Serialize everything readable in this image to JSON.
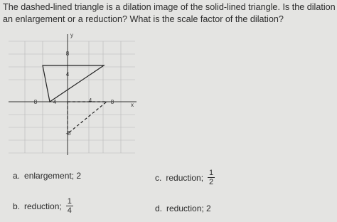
{
  "question": "The dashed-lined triangle is a dilation image of the solid-lined triangle. Is the dilation an enlargement or a reduction? What is the scale factor of the dilation?",
  "graph": {
    "y_axis_label": "y",
    "x_axis_label": "x",
    "y_tick_labels": [
      "8",
      "4",
      "-8"
    ],
    "x_tick_labels": [
      "8",
      "4",
      "4",
      "8"
    ]
  },
  "options": [
    {
      "letter": "a.",
      "text": "enlargement; 2"
    },
    {
      "letter": "b.",
      "text": "reduction;",
      "fraction": {
        "numerator": 1,
        "denominator": 4
      }
    },
    {
      "letter": "c.",
      "text": "reduction;",
      "fraction": {
        "numerator": 1,
        "denominator": 2
      }
    },
    {
      "letter": "d.",
      "text": "reduction; 2"
    }
  ]
}
